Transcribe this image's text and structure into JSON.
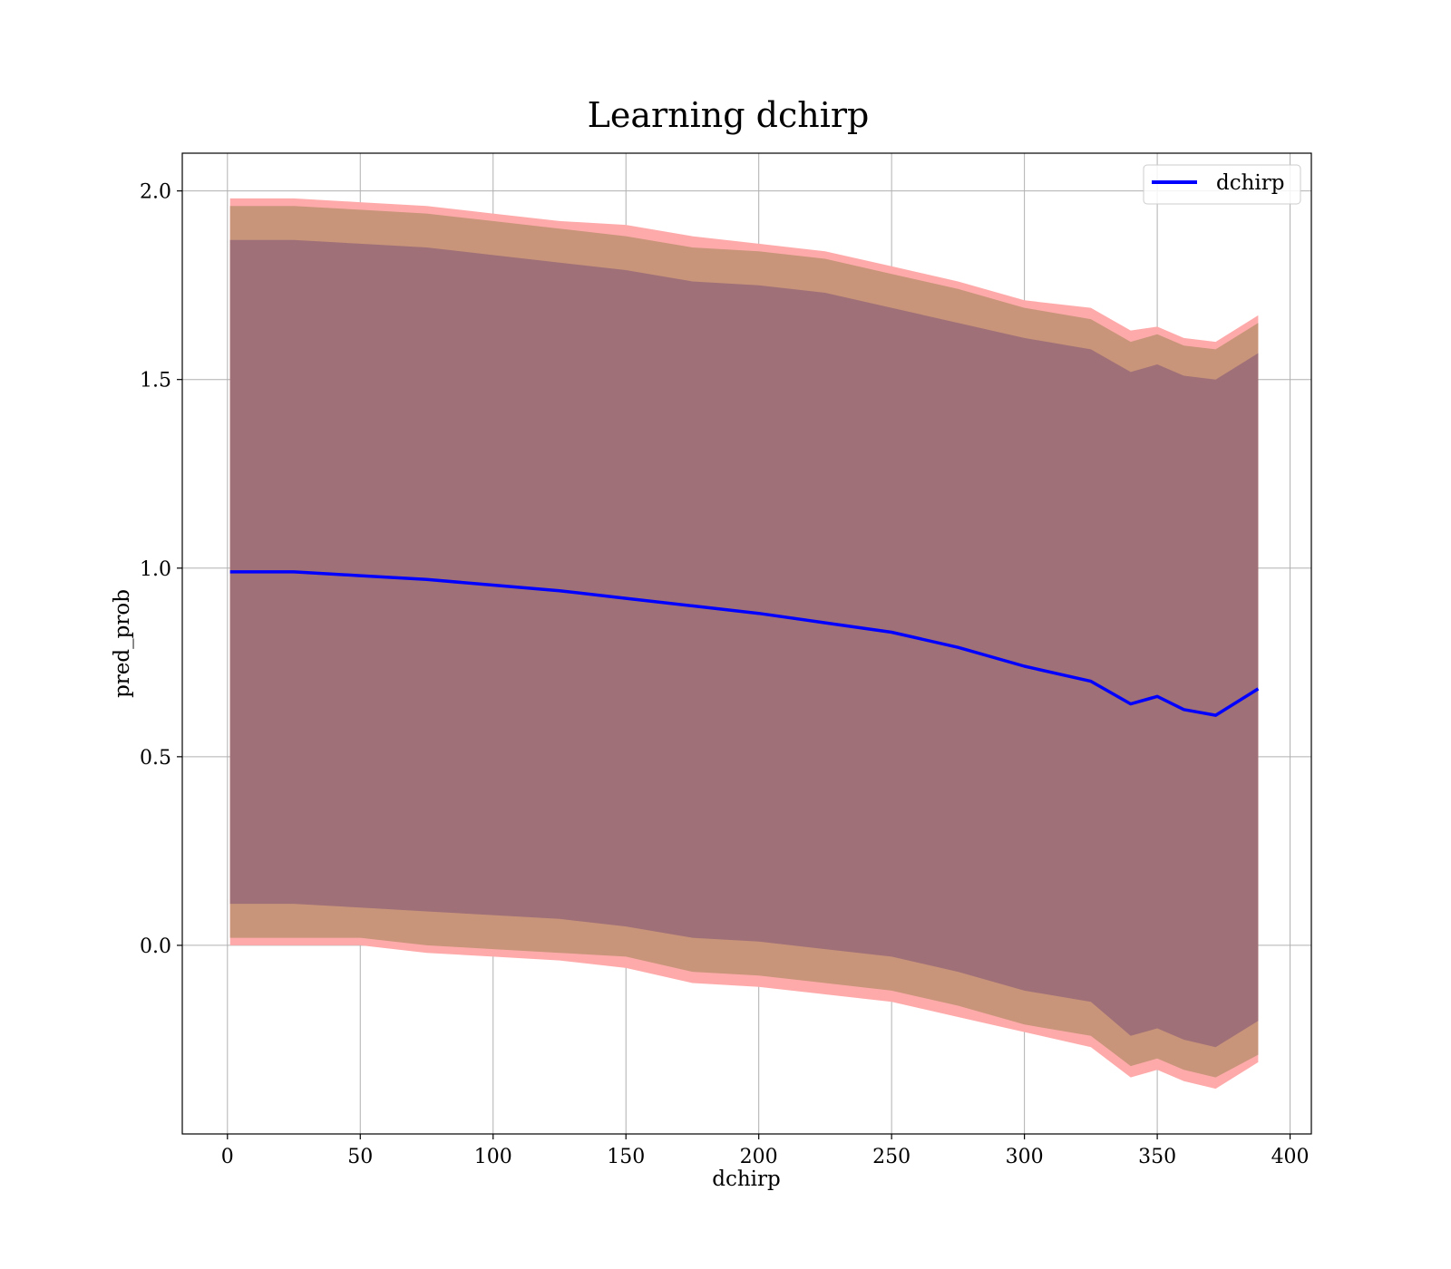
{
  "chart_data": {
    "type": "line",
    "title": "Learning dchirp",
    "xlabel": "dchirp",
    "ylabel": "pred_prob",
    "xlim": [
      -17,
      408
    ],
    "ylim": [
      -0.5,
      2.1
    ],
    "xticks": [
      "0",
      "50",
      "100",
      "150",
      "200",
      "250",
      "300",
      "350",
      "400"
    ],
    "yticks": [
      "0.0",
      "0.5",
      "1.0",
      "1.5",
      "2.0"
    ],
    "grid": true,
    "legend": {
      "placement": "top-right",
      "entries": [
        "dchirp"
      ]
    },
    "colors": {
      "line": "#0000ff",
      "band_outer": "#ffaaaa",
      "band_middle": "#c8957a",
      "band_inner": "#a07078",
      "grid": "#b0b0b0"
    },
    "x": [
      1,
      25,
      50,
      75,
      100,
      125,
      150,
      175,
      200,
      225,
      250,
      275,
      300,
      325,
      340,
      350,
      360,
      372,
      388
    ],
    "series": [
      {
        "name": "dchirp",
        "values": [
          0.99,
          0.99,
          0.98,
          0.97,
          0.955,
          0.94,
          0.92,
          0.9,
          0.88,
          0.855,
          0.83,
          0.79,
          0.74,
          0.7,
          0.64,
          0.66,
          0.625,
          0.61,
          0.68
        ]
      }
    ],
    "bands": [
      {
        "level": "outer",
        "upper": [
          1.98,
          1.98,
          1.97,
          1.96,
          1.94,
          1.92,
          1.91,
          1.88,
          1.86,
          1.84,
          1.8,
          1.76,
          1.71,
          1.69,
          1.63,
          1.64,
          1.61,
          1.6,
          1.67
        ],
        "lower": [
          0.0,
          0.0,
          0.0,
          -0.02,
          -0.03,
          -0.04,
          -0.06,
          -0.1,
          -0.11,
          -0.13,
          -0.15,
          -0.19,
          -0.23,
          -0.27,
          -0.35,
          -0.33,
          -0.36,
          -0.38,
          -0.31
        ]
      },
      {
        "level": "middle",
        "upper": [
          1.96,
          1.96,
          1.95,
          1.94,
          1.92,
          1.9,
          1.88,
          1.85,
          1.84,
          1.82,
          1.78,
          1.74,
          1.69,
          1.66,
          1.6,
          1.62,
          1.59,
          1.58,
          1.65
        ],
        "lower": [
          0.02,
          0.02,
          0.02,
          0.0,
          -0.01,
          -0.02,
          -0.03,
          -0.07,
          -0.08,
          -0.1,
          -0.12,
          -0.16,
          -0.21,
          -0.24,
          -0.32,
          -0.3,
          -0.33,
          -0.35,
          -0.29
        ]
      },
      {
        "level": "inner",
        "upper": [
          1.87,
          1.87,
          1.86,
          1.85,
          1.83,
          1.81,
          1.79,
          1.76,
          1.75,
          1.73,
          1.69,
          1.65,
          1.61,
          1.58,
          1.52,
          1.54,
          1.51,
          1.5,
          1.57
        ],
        "lower": [
          0.11,
          0.11,
          0.1,
          0.09,
          0.08,
          0.07,
          0.05,
          0.02,
          0.01,
          -0.01,
          -0.03,
          -0.07,
          -0.12,
          -0.15,
          -0.24,
          -0.22,
          -0.25,
          -0.27,
          -0.2
        ]
      }
    ]
  }
}
